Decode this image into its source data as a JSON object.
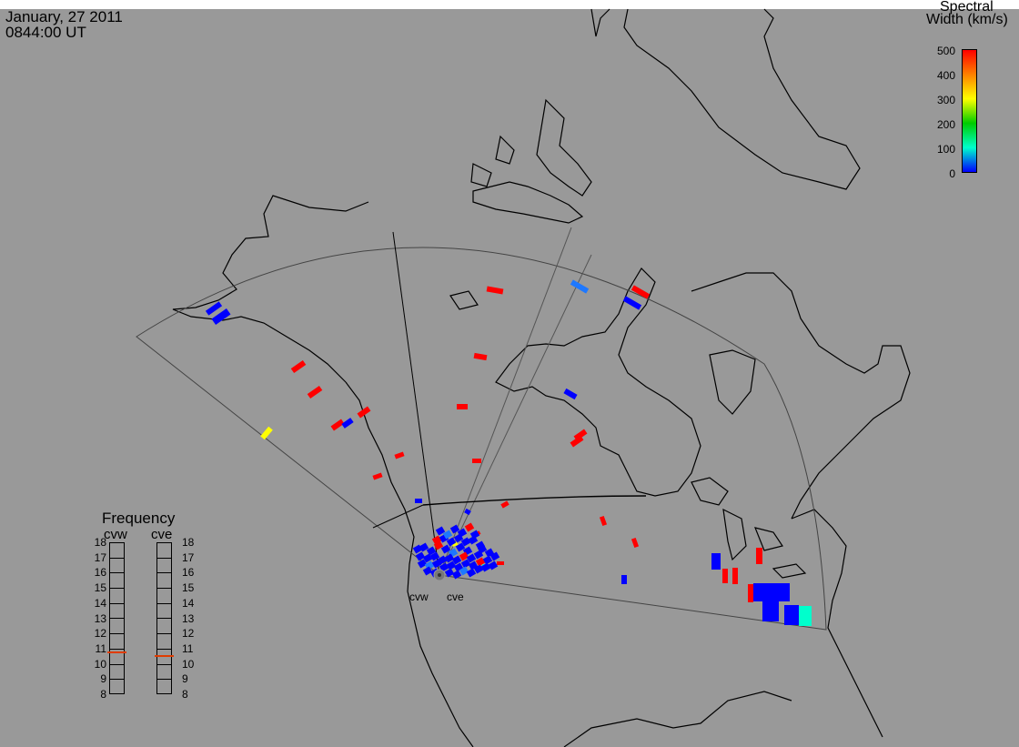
{
  "header": {
    "date": "January, 27 2011",
    "time": "0844:00 UT"
  },
  "colorbar": {
    "title_line1": "Spectral",
    "title_line2": "Width (km/s)",
    "ticks": [
      "500",
      "400",
      "300",
      "200",
      "100",
      "0"
    ],
    "colors": [
      "#ff0000",
      "#ff8000",
      "#ffff00",
      "#00cc00",
      "#00ffcc",
      "#0000ff"
    ]
  },
  "frequency": {
    "title": "Frequency",
    "radars": [
      {
        "name": "cvw",
        "current_mhz": 10.8
      },
      {
        "name": "cve",
        "current_mhz": 10.6
      }
    ],
    "scale": [
      "18",
      "17",
      "16",
      "15",
      "14",
      "13",
      "12",
      "11",
      "10",
      "9",
      "8"
    ]
  },
  "radar_labels": [
    "cvw",
    "cve"
  ],
  "scatter_colors": {
    "red": "#ff0000",
    "blue": "#0000ff",
    "lightblue": "#1e78ff",
    "yellow": "#ffff00",
    "cyan": "#00ffcc"
  }
}
